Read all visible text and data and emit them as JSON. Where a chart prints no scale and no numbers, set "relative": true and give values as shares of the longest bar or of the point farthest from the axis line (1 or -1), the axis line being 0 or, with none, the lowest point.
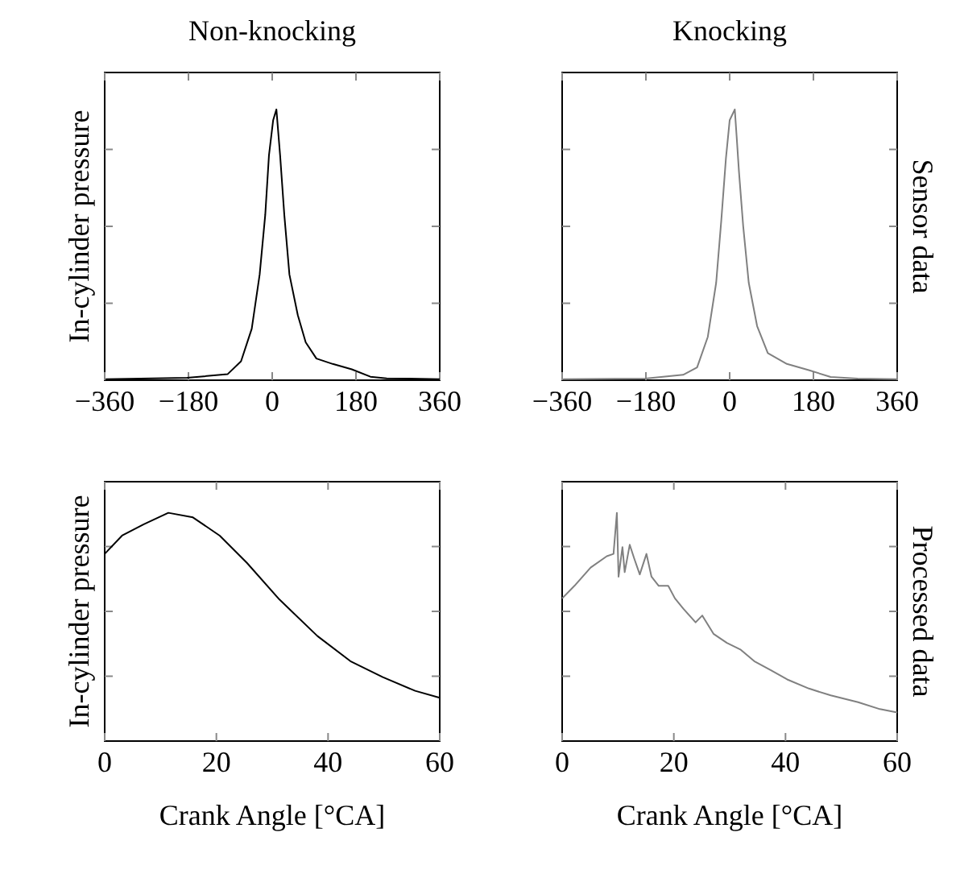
{
  "chart_data": [
    {
      "type": "line",
      "title": "Non-knocking",
      "ylabel": "In-cylinder pressure",
      "relative": true,
      "tick_labels": "x",
      "xlim": [
        -360,
        360
      ],
      "xticks": [
        -360,
        -180,
        0,
        180,
        360
      ],
      "series": [
        {
          "color": "#000000",
          "x": [
            -358,
            -183,
            -96,
            -67,
            -44,
            -27,
            -15,
            -7,
            2,
            9,
            17,
            26,
            37,
            55,
            72,
            95,
            130,
            171,
            211,
            246,
            360
          ],
          "values": [
            0.004,
            0.009,
            0.022,
            0.07,
            0.19,
            0.39,
            0.61,
            0.83,
            0.96,
            1.0,
            0.83,
            0.61,
            0.39,
            0.24,
            0.14,
            0.08,
            0.06,
            0.04,
            0.013,
            0.007,
            0.004
          ]
        }
      ]
    },
    {
      "type": "line",
      "title": "Knocking",
      "y2label": "Sensor data",
      "relative": true,
      "tick_labels": "x",
      "xlim": [
        -360,
        360
      ],
      "xticks": [
        -360,
        -180,
        0,
        180,
        360
      ],
      "series": [
        {
          "color": "#808080",
          "x": [
            -358,
            -182,
            -100,
            -70,
            -47,
            -29,
            -18,
            -8,
            0,
            11,
            15,
            20,
            29,
            41,
            59,
            82,
            123,
            170,
            217,
            275,
            360
          ],
          "values": [
            0.004,
            0.006,
            0.02,
            0.047,
            0.16,
            0.36,
            0.59,
            0.82,
            0.96,
            1.0,
            0.9,
            0.77,
            0.57,
            0.36,
            0.2,
            0.1,
            0.06,
            0.037,
            0.012,
            0.006,
            0.004
          ]
        }
      ]
    },
    {
      "type": "line",
      "ylabel": "In-cylinder pressure",
      "xlabel": "Crank Angle [°CA]",
      "relative": true,
      "tick_labels": "x",
      "xlim": [
        0,
        60
      ],
      "xticks": [
        0,
        20,
        40,
        60
      ],
      "series": [
        {
          "color": "#000000",
          "x": [
            0,
            3.1,
            7,
            11.4,
            15.8,
            20.6,
            25.5,
            31.3,
            38.1,
            44,
            49.8,
            55.6,
            60
          ],
          "values": [
            0.82,
            0.9,
            0.95,
            1.0,
            0.98,
            0.9,
            0.78,
            0.62,
            0.46,
            0.35,
            0.28,
            0.22,
            0.19
          ]
        }
      ]
    },
    {
      "type": "line",
      "xlabel": "Crank Angle [°CA]",
      "y2label": "Processed data",
      "relative": true,
      "tick_labels": "x",
      "xlim": [
        0,
        60
      ],
      "xticks": [
        0,
        20,
        40,
        60
      ],
      "series": [
        {
          "color": "#808080",
          "x": [
            0,
            2.2,
            5.1,
            8,
            9.2,
            9.8,
            10.1,
            10.8,
            11.2,
            12.1,
            12.9,
            13.9,
            15.1,
            16,
            17.3,
            19,
            20.2,
            21.7,
            23.9,
            25.1,
            27.1,
            29.5,
            32,
            34.4,
            37.4,
            40.3,
            44.2,
            48.1,
            53,
            56.9,
            60
          ],
          "values": [
            0.625,
            0.68,
            0.76,
            0.81,
            0.82,
            1.0,
            0.72,
            0.85,
            0.74,
            0.86,
            0.8,
            0.73,
            0.82,
            0.72,
            0.68,
            0.68,
            0.625,
            0.58,
            0.52,
            0.55,
            0.47,
            0.43,
            0.4,
            0.35,
            0.31,
            0.27,
            0.23,
            0.2,
            0.17,
            0.14,
            0.125
          ]
        }
      ]
    }
  ]
}
